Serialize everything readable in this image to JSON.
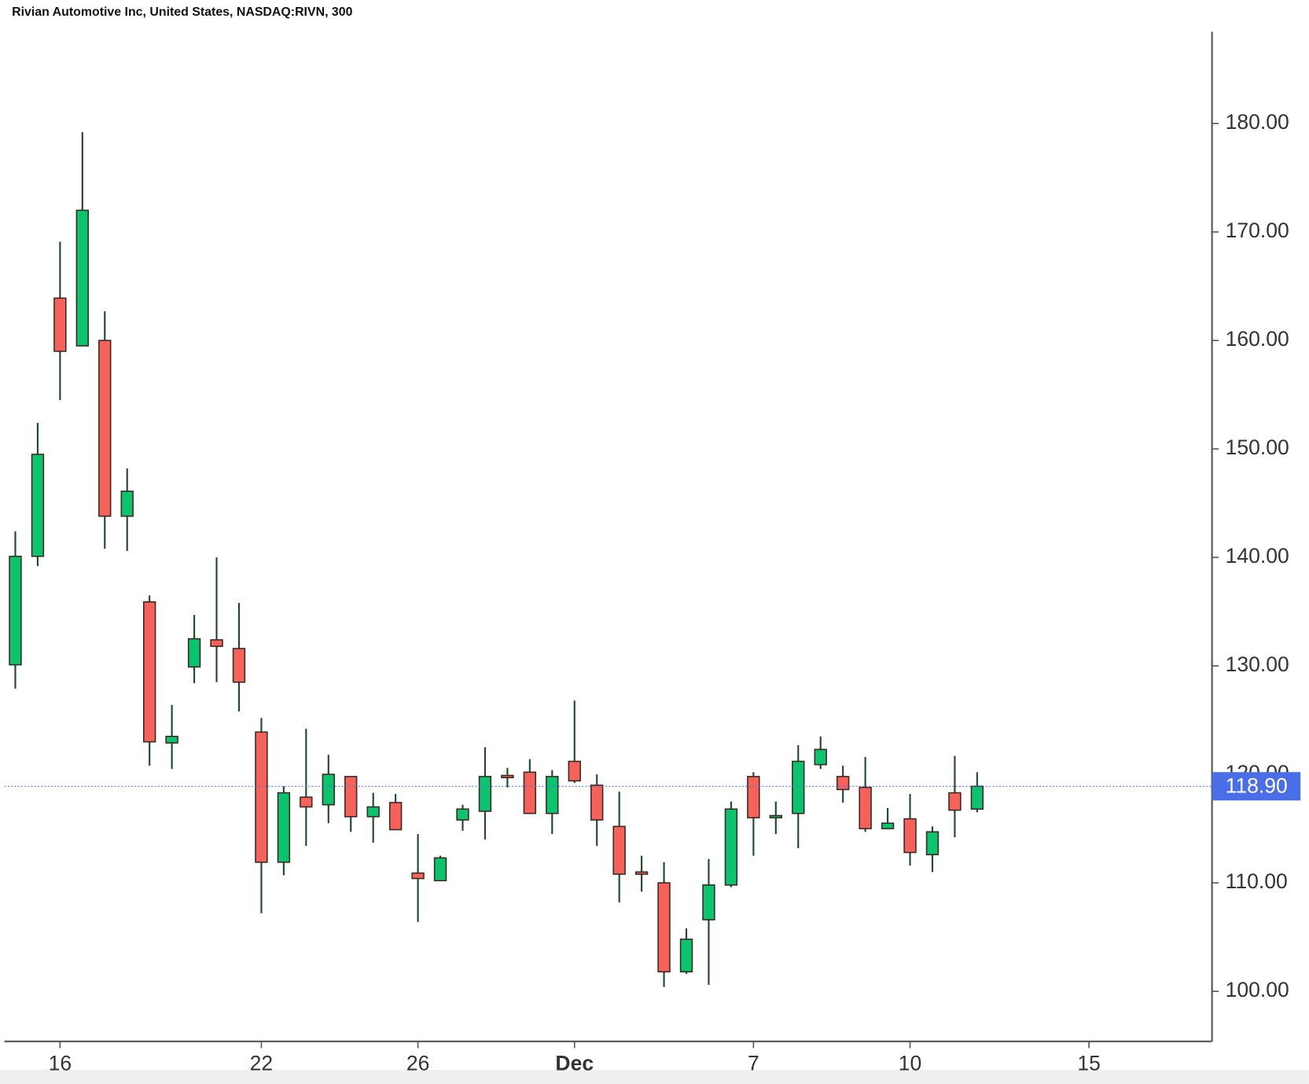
{
  "chart_data": {
    "type": "candlestick",
    "title": "Rivian Automotive Inc, United States, NASDAQ:RIVN, 300",
    "x": [
      0,
      1,
      2,
      3,
      4,
      5,
      6,
      7,
      8,
      9,
      10,
      11,
      12,
      13,
      14,
      15,
      16,
      17,
      18,
      19,
      20,
      21,
      22,
      23,
      24,
      25,
      26,
      27,
      28,
      29,
      30,
      31,
      32,
      33,
      34,
      35,
      36,
      37,
      38,
      39,
      40,
      41,
      42,
      43
    ],
    "open": [
      130.1,
      140.1,
      163.9,
      159.5,
      160.0,
      143.8,
      135.9,
      122.9,
      129.9,
      132.4,
      131.6,
      123.9,
      111.9,
      117.9,
      117.2,
      119.8,
      116.1,
      117.4,
      110.9,
      110.2,
      115.8,
      116.6,
      119.9,
      120.2,
      116.4,
      121.2,
      119.0,
      115.2,
      111.0,
      110.0,
      101.8,
      106.6,
      109.8,
      119.8,
      116.0,
      116.4,
      120.9,
      119.8,
      118.8,
      115.0,
      115.9,
      112.6,
      118.3,
      116.8
    ],
    "high": [
      142.4,
      152.4,
      169.1,
      179.2,
      162.7,
      148.2,
      136.5,
      126.4,
      134.7,
      140.0,
      135.8,
      125.2,
      118.9,
      124.2,
      121.8,
      119.8,
      118.3,
      118.2,
      114.5,
      112.5,
      117.2,
      122.5,
      120.6,
      121.4,
      120.4,
      126.8,
      120.0,
      118.4,
      112.5,
      111.9,
      105.8,
      112.2,
      117.5,
      120.2,
      117.5,
      122.7,
      123.5,
      120.8,
      121.6,
      116.9,
      118.2,
      115.2,
      121.7,
      120.2
    ],
    "low": [
      127.9,
      139.2,
      154.5,
      159.5,
      140.8,
      140.6,
      120.8,
      120.5,
      128.4,
      128.5,
      125.8,
      107.2,
      110.7,
      113.4,
      115.5,
      114.7,
      113.7,
      114.9,
      106.4,
      110.2,
      114.8,
      114.0,
      118.8,
      116.4,
      114.5,
      119.2,
      113.4,
      108.2,
      109.2,
      100.4,
      101.6,
      100.6,
      109.6,
      112.5,
      114.5,
      113.2,
      120.5,
      117.4,
      114.7,
      115.0,
      111.6,
      111.0,
      114.2,
      116.5
    ],
    "close": [
      140.1,
      149.5,
      159.0,
      172.0,
      143.8,
      146.1,
      123.0,
      123.5,
      132.5,
      131.8,
      128.5,
      111.9,
      118.3,
      117.0,
      120.0,
      116.1,
      117.0,
      114.9,
      110.4,
      112.3,
      116.8,
      119.8,
      119.7,
      116.4,
      119.8,
      119.4,
      115.8,
      110.8,
      110.8,
      101.8,
      104.8,
      109.8,
      116.8,
      116.0,
      116.2,
      121.2,
      122.3,
      118.6,
      115.0,
      115.5,
      112.8,
      114.7,
      116.7,
      118.9
    ],
    "xlim": [
      -0.49,
      53.5
    ],
    "xticks": [
      {
        "value": 2,
        "label": "16"
      },
      {
        "value": 11,
        "label": "22"
      },
      {
        "value": 18,
        "label": "26"
      },
      {
        "value": 25,
        "label": "Dec"
      },
      {
        "value": 33,
        "label": "7"
      },
      {
        "value": 40,
        "label": "10"
      },
      {
        "value": 48,
        "label": "15"
      }
    ],
    "ylim": [
      95.38,
      188.46
    ],
    "yticks": [
      {
        "value": 100,
        "label": "100.00"
      },
      {
        "value": 110,
        "label": "110.00"
      },
      {
        "value": 120,
        "label": "120.00"
      },
      {
        "value": 130,
        "label": "130.00"
      },
      {
        "value": 140,
        "label": "140.00"
      },
      {
        "value": 150,
        "label": "150.00"
      },
      {
        "value": 160,
        "label": "160.00"
      },
      {
        "value": 170,
        "label": "170.00"
      },
      {
        "value": 180,
        "label": "180.00"
      }
    ],
    "up_color": "#0cc46e",
    "down_color": "#f6625a",
    "wick_color": "#1d4a2c",
    "last_price": {
      "value": 118.9,
      "label": "118.90"
    },
    "last_price_color": "#4a6ee8"
  }
}
